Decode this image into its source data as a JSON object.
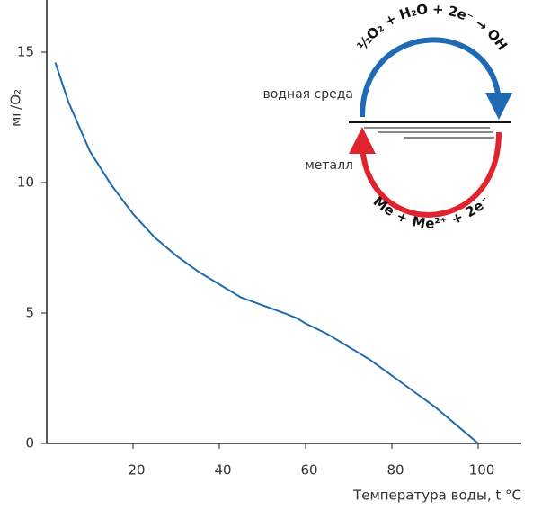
{
  "chart_data": {
    "type": "line",
    "ylabel": "мг/O₂",
    "xlabel": "Температура воды, t °C",
    "x": [
      2,
      5,
      10,
      15,
      20,
      25,
      30,
      35,
      40,
      45,
      50,
      55,
      58,
      60,
      65,
      70,
      75,
      80,
      85,
      90,
      95,
      100
    ],
    "series": [
      {
        "color": "#1f6aad",
        "values": [
          14.6,
          13.1,
          11.2,
          9.9,
          8.8,
          7.9,
          7.2,
          6.6,
          6.1,
          5.6,
          5.3,
          5.0,
          4.8,
          4.6,
          4.2,
          3.7,
          3.2,
          2.6,
          2.0,
          1.4,
          0.7,
          0
        ]
      }
    ],
    "xlim": [
      0,
      110
    ],
    "ylim": [
      0,
      17
    ],
    "xticks": [
      20,
      40,
      60,
      80,
      100
    ],
    "yticks": [
      0,
      5,
      10,
      15
    ],
    "annotations": [
      "½O₂ + H₂O + 2e⁻ → OH",
      "водная среда",
      "металл",
      "Me + Me²⁺ + 2e⁻"
    ]
  }
}
